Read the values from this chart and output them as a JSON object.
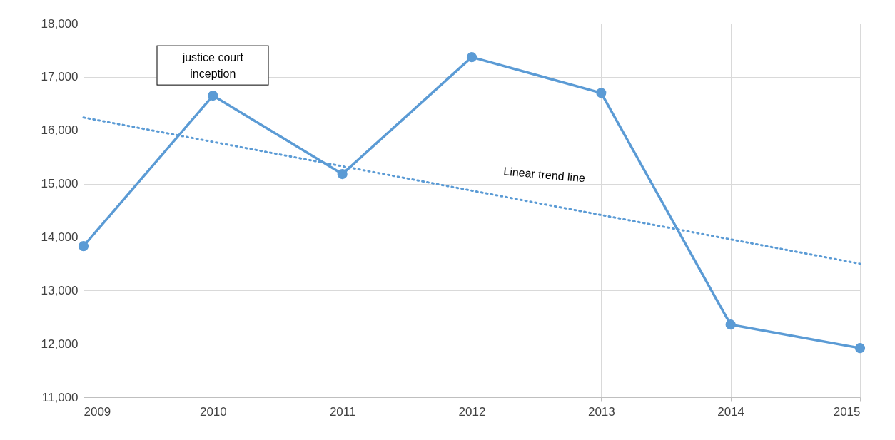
{
  "chart_data": {
    "type": "line",
    "x": [
      2009,
      2010,
      2011,
      2012,
      2013,
      2014,
      2015
    ],
    "series": [
      {
        "color": "#5b9bd5",
        "values": [
          13830,
          16650,
          15180,
          17370,
          16700,
          12360,
          11920
        ],
        "marker": "circle"
      },
      {
        "name": "Linear trend line",
        "type": "line",
        "x": [
          2009,
          2015
        ],
        "values": [
          16240,
          13500
        ],
        "color": "#5b9bd5",
        "line_style": "dotted",
        "marker": "none"
      }
    ],
    "xlim": [
      2009,
      2015
    ],
    "xticks": [
      2009,
      2010,
      2011,
      2012,
      2013,
      2014,
      2015
    ],
    "ylim": [
      11000,
      18000
    ],
    "yticks": [
      {
        "value": 11000,
        "label": "11,000"
      },
      {
        "value": 12000,
        "label": "12,000"
      },
      {
        "value": 13000,
        "label": "13,000"
      },
      {
        "value": 14000,
        "label": "14,000"
      },
      {
        "value": 15000,
        "label": "15,000"
      },
      {
        "value": 16000,
        "label": "16,000"
      },
      {
        "value": 17000,
        "label": "17,000"
      },
      {
        "value": 18000,
        "label": "18,000"
      }
    ],
    "grid": true,
    "annotations": [
      {
        "text": "justice court inception",
        "x": 2010,
        "y": 16650
      }
    ]
  }
}
